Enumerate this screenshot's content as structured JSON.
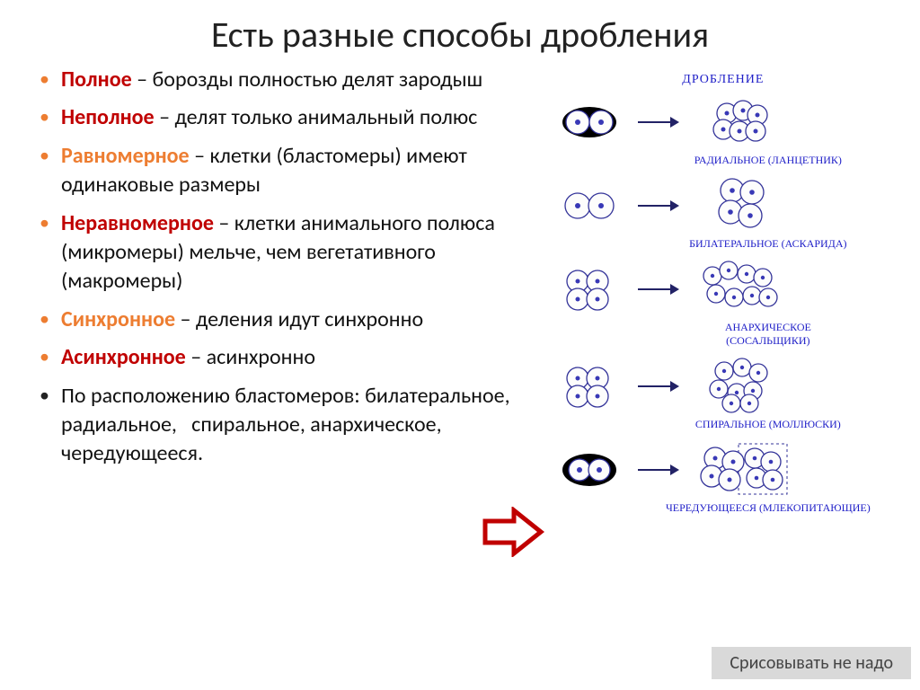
{
  "title": "Есть разные способы дробления",
  "bullets": [
    {
      "termClass": "term-red",
      "term": "Полное",
      "text": " – борозды полностью делят зародыш",
      "liClass": "orange"
    },
    {
      "termClass": "term-red",
      "term": "Неполное",
      "text": " – делят только анимальный полюс",
      "liClass": "orange"
    },
    {
      "termClass": "term-orange",
      "term": "Равномерное",
      "text": " – клетки (бластомеры) имеют одинаковые размеры",
      "liClass": "orange"
    },
    {
      "termClass": "term-red",
      "term": "Неравномерное",
      "text": " – клетки анимального полюса (микромеры) мельче, чем вегетативного (макромеры)",
      "liClass": "orange"
    },
    {
      "termClass": "term-orange",
      "term": "Синхронное",
      "text": " – деления идут синхронно",
      "liClass": "orange"
    },
    {
      "termClass": "term-red",
      "term": "Асинхронное",
      "text": " – асинхронно",
      "liClass": "orange"
    },
    {
      "termClass": "",
      "term": "",
      "text": "По расположению бластомеров: билатеральное, радиальное,   спиральное, анархическое, чередующееся.",
      "liClass": "black"
    }
  ],
  "diagram": {
    "title": "ДРОБЛЕНИЕ",
    "labels": [
      "РАДИАЛЬНОЕ (ЛАНЦЕТНИК)",
      "БИЛАТЕРАЛЬНОЕ (АСКАРИДА)",
      "АНАРХИЧЕСКОЕ\n(СОСАЛЬЩИКИ)",
      "СПИРАЛЬНОЕ (МОЛЛЮСКИ)",
      "ЧЕРЕДУЮЩЕЕСЯ (МЛЕКОПИТАЮЩИЕ)"
    ]
  },
  "footer": "Срисовывать не надо",
  "colors": {
    "orange": "#ed7d31",
    "red": "#c00000",
    "blueInk": "#2020c8",
    "arrowRed": "#c00000"
  }
}
